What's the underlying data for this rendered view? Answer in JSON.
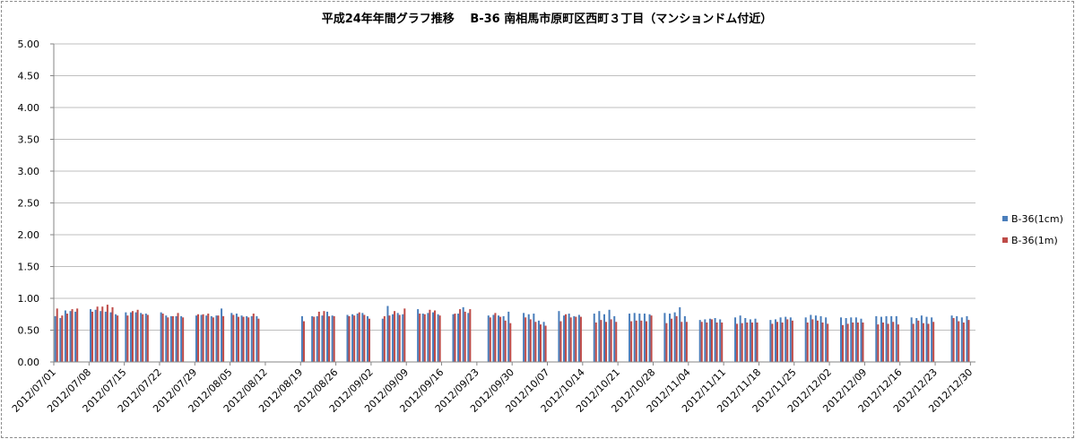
{
  "chart_data": {
    "type": "bar",
    "title": "平成24年年間グラフ推移　 B-36 南相馬市原町区西町３丁目（マンションドム付近）",
    "xlabel": "",
    "ylabel": "",
    "ylim": [
      0,
      5
    ],
    "yticks": [
      "0.00",
      "0.50",
      "1.00",
      "1.50",
      "2.00",
      "2.50",
      "3.00",
      "3.50",
      "4.00",
      "4.50",
      "5.00"
    ],
    "x_start": "2012/07/01",
    "x_end": "2012/12/30",
    "xtick_labels": [
      "2012/07/01",
      "2012/07/08",
      "2012/07/15",
      "2012/07/22",
      "2012/07/29",
      "2012/08/05",
      "2012/08/12",
      "2012/08/19",
      "2012/08/26",
      "2012/09/02",
      "2012/09/09",
      "2012/09/16",
      "2012/09/23",
      "2012/09/30",
      "2012/10/07",
      "2012/10/14",
      "2012/10/21",
      "2012/10/28",
      "2012/11/04",
      "2012/11/11",
      "2012/11/18",
      "2012/11/25",
      "2012/12/02",
      "2012/12/09",
      "2012/12/16",
      "2012/12/23",
      "2012/12/30"
    ],
    "grid": true,
    "legend_position": "right",
    "series": [
      {
        "name": "B-36(1cm)",
        "color": "#4a7ebb",
        "values": [
          0.72,
          0.69,
          0.81,
          0.8,
          0.79,
          null,
          null,
          0.83,
          0.82,
          0.8,
          0.79,
          0.78,
          0.75,
          null,
          0.78,
          0.78,
          0.78,
          0.77,
          0.76,
          null,
          null,
          0.78,
          0.73,
          0.72,
          0.72,
          0.72,
          null,
          null,
          0.73,
          0.74,
          0.73,
          0.72,
          0.73,
          0.84,
          null,
          0.77,
          0.76,
          0.73,
          0.72,
          0.72,
          0.72,
          null,
          null,
          null,
          null,
          null,
          null,
          null,
          null,
          0.72,
          null,
          0.72,
          0.72,
          0.73,
          0.79,
          0.73,
          null,
          null,
          0.74,
          0.75,
          0.76,
          0.77,
          0.72,
          null,
          null,
          0.68,
          0.88,
          0.75,
          0.77,
          0.75,
          null,
          null,
          0.83,
          0.76,
          0.77,
          0.78,
          0.75,
          null,
          null,
          0.75,
          0.76,
          0.86,
          0.77,
          null,
          null,
          null,
          0.73,
          0.74,
          0.73,
          0.72,
          0.79,
          null,
          null,
          0.77,
          0.75,
          0.76,
          0.65,
          0.63,
          null,
          null,
          0.8,
          0.73,
          0.76,
          0.72,
          0.74,
          null,
          null,
          0.76,
          0.8,
          0.75,
          0.82,
          0.72,
          null,
          null,
          0.76,
          0.77,
          0.76,
          0.76,
          0.75,
          null,
          null,
          0.77,
          0.76,
          0.78,
          0.86,
          0.72,
          null,
          null,
          0.66,
          0.67,
          0.68,
          0.69,
          0.67,
          null,
          null,
          0.7,
          0.73,
          0.69,
          0.67,
          0.68,
          null,
          null,
          0.66,
          0.67,
          0.7,
          0.71,
          0.7,
          null,
          null,
          0.7,
          0.74,
          0.73,
          0.72,
          0.7,
          null,
          null,
          0.7,
          0.69,
          0.7,
          0.7,
          0.68,
          null,
          null,
          0.72,
          0.71,
          0.72,
          0.72,
          0.72,
          null,
          null,
          0.7,
          0.69,
          0.73,
          0.71,
          0.7,
          null,
          null,
          null,
          0.73,
          0.72,
          0.7,
          0.72,
          null
        ]
      },
      {
        "name": "B-36(1m)",
        "color": "#be4b48",
        "values": [
          0.84,
          0.73,
          0.76,
          0.83,
          0.84,
          null,
          null,
          0.79,
          0.87,
          0.87,
          0.9,
          0.86,
          0.73,
          null,
          0.73,
          0.8,
          0.82,
          0.75,
          0.74,
          null,
          null,
          0.76,
          0.7,
          0.72,
          0.77,
          0.7,
          null,
          null,
          0.75,
          0.75,
          0.76,
          0.7,
          0.73,
          0.72,
          null,
          0.74,
          0.71,
          0.71,
          0.7,
          0.76,
          0.68,
          null,
          null,
          null,
          null,
          null,
          null,
          null,
          null,
          0.64,
          null,
          0.71,
          0.79,
          0.8,
          0.72,
          0.72,
          null,
          null,
          0.72,
          0.73,
          0.78,
          0.74,
          0.68,
          null,
          null,
          0.72,
          0.73,
          0.8,
          0.74,
          0.84,
          null,
          null,
          0.76,
          0.75,
          0.82,
          0.81,
          0.73,
          null,
          null,
          0.76,
          0.83,
          0.79,
          0.83,
          null,
          null,
          null,
          0.7,
          0.77,
          0.71,
          0.65,
          0.61,
          null,
          null,
          0.7,
          0.67,
          0.63,
          0.59,
          0.57,
          null,
          null,
          0.64,
          0.75,
          0.7,
          0.71,
          0.71,
          null,
          null,
          0.62,
          0.66,
          0.63,
          0.67,
          0.63,
          null,
          null,
          0.64,
          0.65,
          0.65,
          0.64,
          0.73,
          null,
          null,
          0.61,
          0.68,
          0.72,
          0.63,
          0.63,
          null,
          null,
          0.63,
          0.62,
          0.67,
          0.62,
          0.62,
          null,
          null,
          0.6,
          0.61,
          0.62,
          0.62,
          0.62,
          null,
          null,
          0.6,
          0.63,
          0.62,
          0.67,
          0.65,
          null,
          null,
          0.62,
          0.67,
          0.65,
          0.62,
          0.6,
          null,
          null,
          0.58,
          0.6,
          0.62,
          0.62,
          0.62,
          null,
          null,
          0.59,
          0.62,
          0.6,
          0.63,
          0.59,
          null,
          null,
          0.6,
          0.65,
          0.61,
          0.6,
          0.63,
          null,
          null,
          null,
          0.69,
          0.64,
          0.62,
          0.66,
          null
        ]
      }
    ]
  }
}
